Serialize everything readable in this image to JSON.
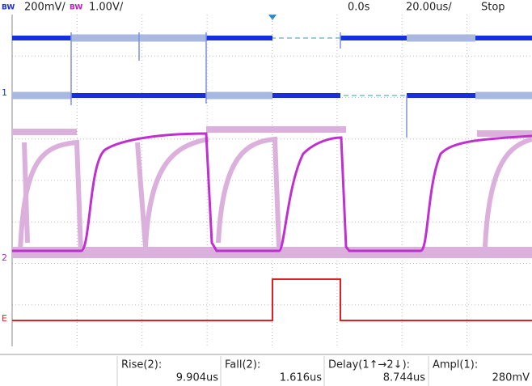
{
  "header": {
    "ch1_bw": "BW",
    "ch1_scale": "200mV/",
    "ch2_bw": "BW",
    "ch2_scale": "1.00V/",
    "time_offset": "0.0s",
    "time_scale": "20.00us/",
    "status": "Stop"
  },
  "markers": {
    "ch1": "1",
    "ch2": "2",
    "ext": "E"
  },
  "measurements": [
    {
      "label": "Rise(2):",
      "value": "9.904us"
    },
    {
      "label": "Fall(2):",
      "value": "1.616us"
    },
    {
      "label": "Delay(1↑→2↓):",
      "value": "8.744us"
    },
    {
      "label": "Ampl(1):",
      "value": "280mV"
    }
  ]
}
